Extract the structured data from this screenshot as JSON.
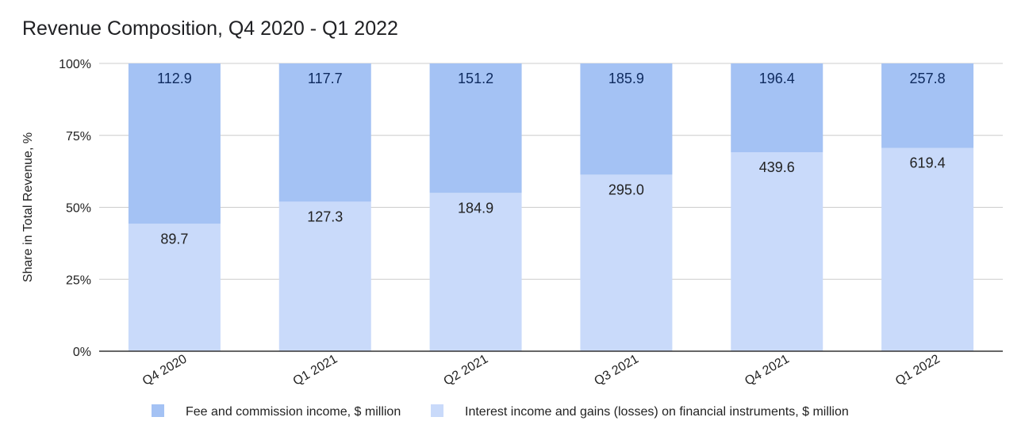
{
  "chart_data": {
    "type": "bar",
    "stacked": "percent",
    "title": "Revenue Composition, Q4 2020 - Q1 2022",
    "xlabel": "",
    "ylabel": "Share in Total Revenue, %",
    "ylim": [
      0,
      100
    ],
    "yticks": [
      "0%",
      "25%",
      "50%",
      "75%",
      "100%"
    ],
    "categories": [
      "Q4 2020",
      "Q1 2021",
      "Q2 2021",
      "Q3 2021",
      "Q4 2021",
      "Q1 2022"
    ],
    "series": [
      {
        "name": "Interest income and gains (losses) on financial instruments, $ million",
        "values": [
          89.7,
          127.3,
          184.9,
          295.0,
          439.6,
          619.4
        ],
        "labels": [
          "89.7",
          "127.3",
          "184.9",
          "295.0",
          "439.6",
          "619.4"
        ],
        "color": "#c9dafa",
        "label_color": "#222222"
      },
      {
        "name": "Fee and commission income, $ million",
        "values": [
          112.9,
          117.7,
          151.2,
          185.9,
          196.4,
          257.8
        ],
        "labels": [
          "112.9",
          "117.7",
          "151.2",
          "185.9",
          "196.4",
          "257.8"
        ],
        "color": "#a4c2f4",
        "label_color": "#0e2a5e"
      }
    ],
    "legend": {
      "position": "bottom",
      "order": [
        1,
        0
      ]
    },
    "grid": true
  }
}
